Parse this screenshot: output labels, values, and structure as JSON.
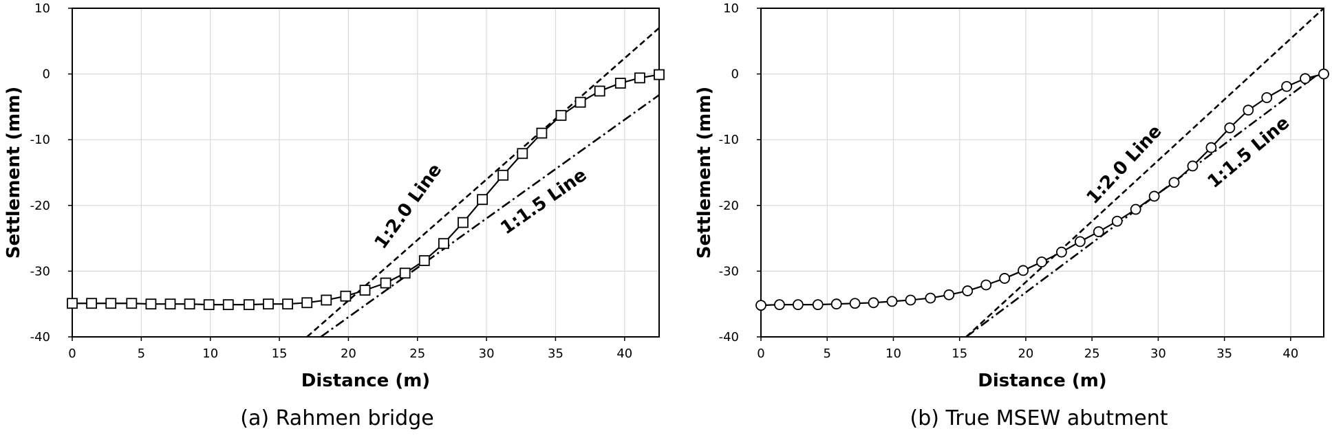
{
  "chart_data": [
    {
      "type": "line",
      "caption": "(a) Rahmen bridge",
      "xlabel": "Distance (m)",
      "ylabel": "Settlement (mm)",
      "xlim": [
        0,
        42.5
      ],
      "ylim": [
        -40,
        10
      ],
      "xticks": [
        "0",
        "5",
        "10",
        "15",
        "20",
        "25",
        "30",
        "35",
        "40"
      ],
      "yticks": [
        "-40",
        "-30",
        "-20",
        "-10",
        "0",
        "10"
      ],
      "grid": true,
      "marker": "square",
      "measured": {
        "x": [
          0,
          1.4,
          2.8,
          4.3,
          5.7,
          7.1,
          8.5,
          9.9,
          11.3,
          12.8,
          14.2,
          15.6,
          17.0,
          18.4,
          19.8,
          21.2,
          22.7,
          24.1,
          25.5,
          26.9,
          28.3,
          29.7,
          31.2,
          32.6,
          34.0,
          35.4,
          36.8,
          38.2,
          39.7,
          41.1,
          42.5
        ],
        "y": [
          -34.9,
          -34.9,
          -34.9,
          -34.9,
          -35.0,
          -35.0,
          -35.0,
          -35.1,
          -35.1,
          -35.1,
          -35.0,
          -35.0,
          -34.8,
          -34.4,
          -33.8,
          -32.9,
          -31.8,
          -30.3,
          -28.4,
          -25.8,
          -22.6,
          -19.1,
          -15.4,
          -12.1,
          -9.0,
          -6.3,
          -4.3,
          -2.6,
          -1.4,
          -0.6,
          -0.1
        ]
      },
      "reference_lines": [
        {
          "label": "1:2.0 Line",
          "x": [
            17.0,
            42.5
          ],
          "y": [
            -40,
            7.0
          ],
          "dash": "dashed"
        },
        {
          "label": "1:1.5 Line",
          "x": [
            18.0,
            42.5
          ],
          "y": [
            -40,
            -3.2
          ],
          "dash": "dash-dot"
        }
      ]
    },
    {
      "type": "line",
      "caption": "(b) True MSEW abutment",
      "xlabel": "Distance (m)",
      "ylabel": "Settlement (mm)",
      "xlim": [
        0,
        42.5
      ],
      "ylim": [
        -40,
        10
      ],
      "xticks": [
        "0",
        "5",
        "10",
        "15",
        "20",
        "25",
        "30",
        "35",
        "40"
      ],
      "yticks": [
        "-40",
        "-30",
        "-20",
        "-10",
        "0",
        "10"
      ],
      "grid": true,
      "marker": "circle",
      "measured": {
        "x": [
          0,
          1.4,
          2.8,
          4.3,
          5.7,
          7.1,
          8.5,
          9.9,
          11.3,
          12.8,
          14.2,
          15.6,
          17.0,
          18.4,
          19.8,
          21.2,
          22.7,
          24.1,
          25.5,
          26.9,
          28.3,
          29.7,
          31.2,
          32.6,
          34.0,
          35.4,
          36.8,
          38.2,
          39.7,
          41.1,
          42.5
        ],
        "y": [
          -35.2,
          -35.1,
          -35.1,
          -35.1,
          -35.0,
          -34.9,
          -34.8,
          -34.6,
          -34.4,
          -34.1,
          -33.6,
          -33.0,
          -32.1,
          -31.1,
          -29.9,
          -28.6,
          -27.1,
          -25.5,
          -24.0,
          -22.4,
          -20.6,
          -18.6,
          -16.5,
          -14.0,
          -11.2,
          -8.2,
          -5.5,
          -3.6,
          -1.9,
          -0.7,
          0.0
        ]
      },
      "reference_lines": [
        {
          "label": "1:2.0 Line",
          "x": [
            15.5,
            42.5
          ],
          "y": [
            -40,
            10.0
          ],
          "dash": "dashed"
        },
        {
          "label": "1:1.5 Line",
          "x": [
            15.5,
            42.5
          ],
          "y": [
            -40,
            0.6
          ],
          "dash": "dash-dot"
        }
      ]
    }
  ]
}
